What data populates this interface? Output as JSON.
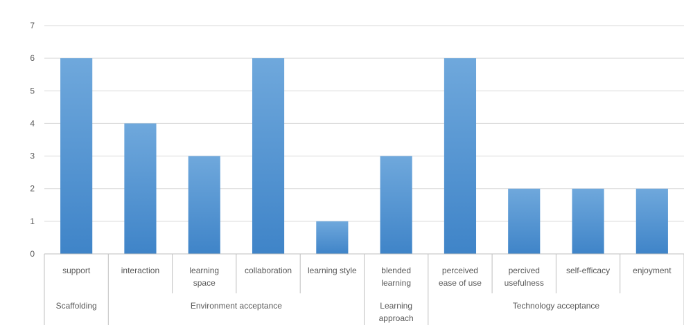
{
  "chart_data": {
    "type": "bar",
    "categories": [
      "support",
      "interaction",
      "learning space",
      "collaboration",
      "learning style",
      "blended learning",
      "perceived ease of use",
      "percived usefulness",
      "self-efficacy",
      "enjoyment"
    ],
    "category_lines": [
      [
        "support"
      ],
      [
        "interaction"
      ],
      [
        "learning",
        "space"
      ],
      [
        "collaboration"
      ],
      [
        "learning style"
      ],
      [
        "blended",
        "learning"
      ],
      [
        "perceived",
        "ease of use"
      ],
      [
        "percived",
        "usefulness"
      ],
      [
        "self-efficacy"
      ],
      [
        "enjoyment"
      ]
    ],
    "groups": [
      {
        "name": "Scaffolding",
        "lines": [
          "Scaffolding"
        ],
        "span": [
          0,
          0
        ]
      },
      {
        "name": "Environment acceptance",
        "lines": [
          "Environment acceptance"
        ],
        "span": [
          1,
          4
        ]
      },
      {
        "name": "Learning approach",
        "lines": [
          "Learning",
          "approach"
        ],
        "span": [
          5,
          5
        ]
      },
      {
        "name": "Technology acceptance",
        "lines": [
          "Technology acceptance"
        ],
        "span": [
          6,
          9
        ]
      }
    ],
    "series": [
      {
        "values": [
          6,
          4,
          3,
          6,
          1,
          3,
          6,
          2,
          2,
          2
        ]
      }
    ],
    "yticks": [
      0,
      1,
      2,
      3,
      4,
      5,
      6,
      7
    ],
    "ylim": [
      0,
      7
    ],
    "grid": true,
    "legend": "none",
    "bar_color_top": "#6fa8dc",
    "bar_color_bottom": "#3f84c8",
    "grid_color": "#d9d9d9",
    "axis_color": "#bfbfbf",
    "text_color": "#595959"
  }
}
